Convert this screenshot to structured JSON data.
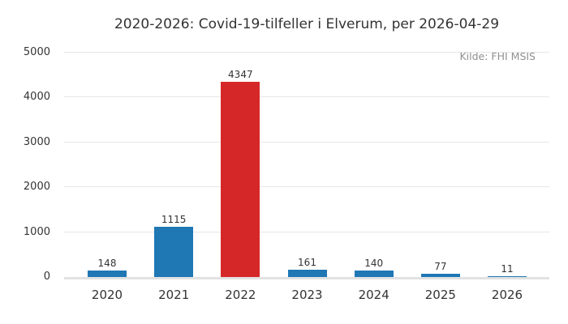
{
  "figure": {
    "title": "2020-2026: Covid-19-tilfeller i Elverum, per 2026-04-29",
    "source_label": "Kilde: FHI MSIS"
  },
  "chart_data": {
    "type": "bar",
    "title": "2020-2026: Covid-19-tilfeller i Elverum, per 2026-04-29",
    "annotation": "Kilde: FHI MSIS",
    "categories": [
      "2020",
      "2021",
      "2022",
      "2023",
      "2024",
      "2025",
      "2026"
    ],
    "values": [
      148,
      1115,
      4347,
      161,
      140,
      77,
      11
    ],
    "value_labels_shown": true,
    "highlighted_category": "2022",
    "xlabel": "",
    "ylabel": "",
    "ylim": [
      0,
      5000
    ],
    "yticks": [
      0,
      1000,
      2000,
      3000,
      4000,
      5000
    ],
    "grid": true,
    "legend": false,
    "colors": {
      "default_bar": "#1f77b4",
      "highlight_bar": "#d62728",
      "gridline": "#e6e6e6",
      "axis_line": "#e2e2e2",
      "text": "#333333",
      "source_text": "#909090",
      "background": "#ffffff"
    },
    "bar_colors": [
      "#1f77b4",
      "#1f77b4",
      "#d62728",
      "#1f77b4",
      "#1f77b4",
      "#1f77b4",
      "#1f77b4"
    ]
  }
}
